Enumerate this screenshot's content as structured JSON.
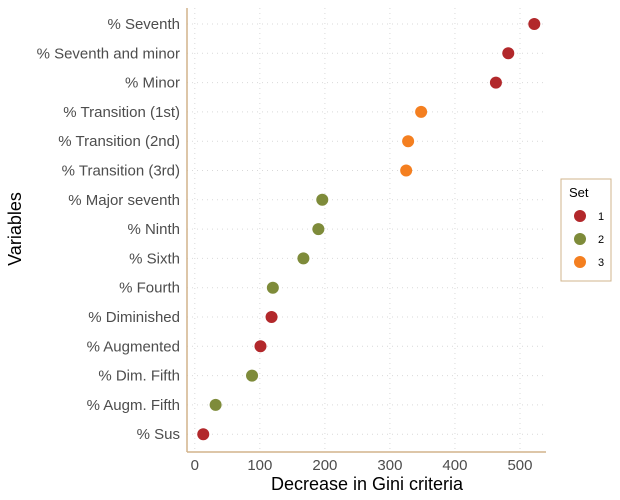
{
  "chart_data": {
    "type": "scatter",
    "title": "",
    "xlabel": "Decrease in Gini criteria",
    "ylabel": "Variables",
    "xlim": [
      -12,
      540
    ],
    "xticks": [
      0,
      100,
      200,
      300,
      400,
      500
    ],
    "grid": true,
    "legend": {
      "title": "Set",
      "position": "right"
    },
    "categories": [
      "% Seventh",
      "% Seventh and minor",
      "% Minor",
      "% Transition (1st)",
      "% Transition (2nd)",
      "% Transition (3rd)",
      "% Major seventh",
      "% Ninth",
      "% Sixth",
      "% Fourth",
      "% Diminished",
      "% Augmented",
      "% Dim. Fifth",
      "% Augm. Fifth",
      "% Sus"
    ],
    "values": [
      522,
      482,
      463,
      348,
      328,
      325,
      196,
      190,
      167,
      120,
      118,
      101,
      88,
      32,
      13
    ],
    "sets": [
      "1",
      "1",
      "1",
      "3",
      "3",
      "3",
      "2",
      "2",
      "2",
      "2",
      "1",
      "1",
      "2",
      "2",
      "1"
    ],
    "set_colors": {
      "1": "#b2282b",
      "2": "#7e8b3a",
      "3": "#f47f20"
    },
    "legend_entries": [
      "1",
      "2",
      "3"
    ]
  }
}
